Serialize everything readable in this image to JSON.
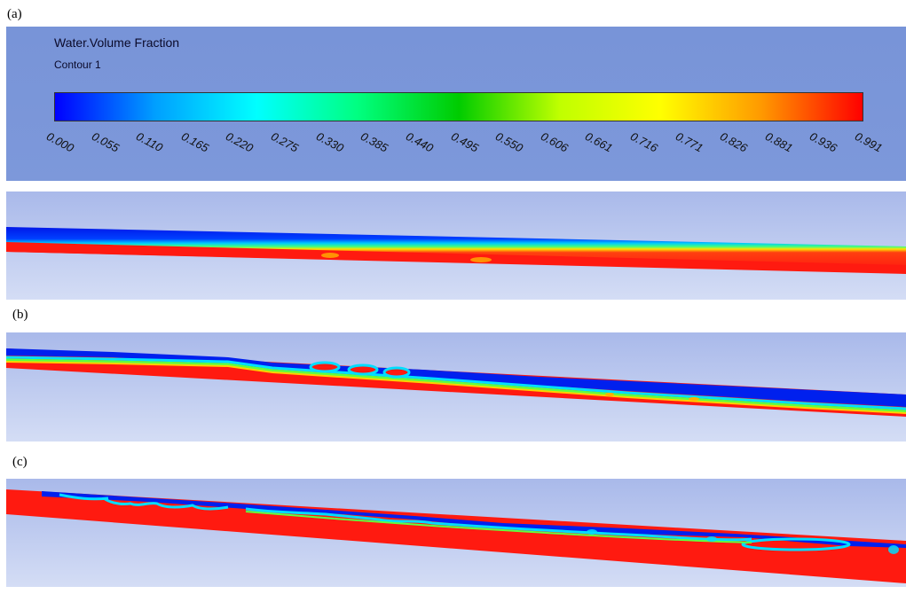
{
  "labels": {
    "a": "(a)",
    "b": "(b)",
    "c": "(c)"
  },
  "legend": {
    "title": "Water.Volume Fraction",
    "subtitle": "Contour 1",
    "ticks": [
      "0.000",
      "0.055",
      "0.110",
      "0.165",
      "0.220",
      "0.275",
      "0.330",
      "0.385",
      "0.440",
      "0.495",
      "0.550",
      "0.606",
      "0.661",
      "0.716",
      "0.771",
      "0.826",
      "0.881",
      "0.936",
      "0.991"
    ],
    "colors": [
      "#0000ff",
      "#00a0ff",
      "#00ffff",
      "#00ff80",
      "#00cc00",
      "#c0ff00",
      "#ffff00",
      "#ff9900",
      "#ff0000"
    ]
  },
  "colors": {
    "background_top": "#a8b8ea",
    "background_bottom": "#d8e0f6",
    "water": "#ff1a10",
    "gas": "#0022ee"
  }
}
